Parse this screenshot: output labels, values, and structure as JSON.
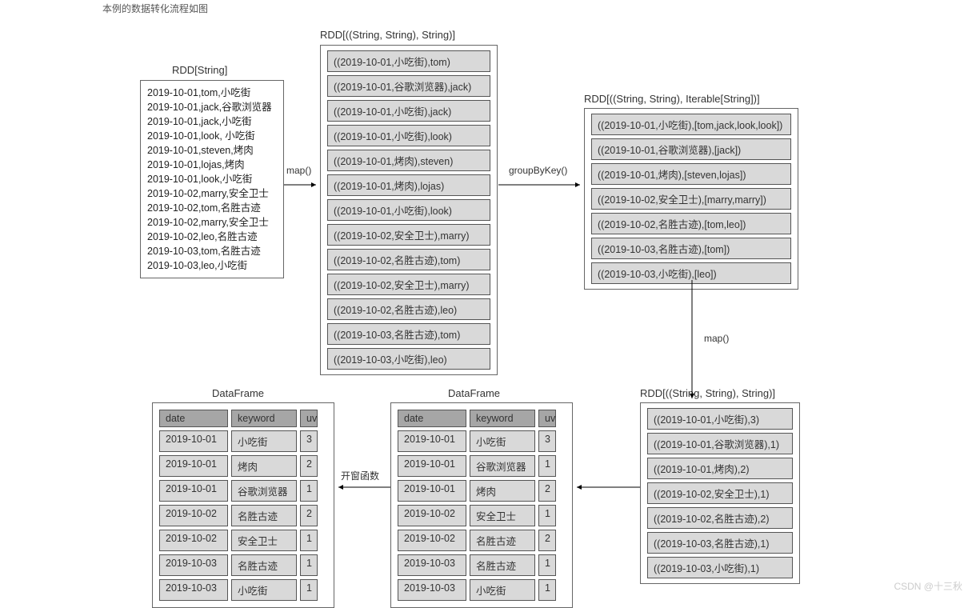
{
  "caption": "本例的数据转化流程如图",
  "watermark": "CSDN @十三秋",
  "colors": {
    "border": "#666666",
    "cell_bg": "#d9d9d9",
    "header_bg": "#a6a6a6",
    "text": "#333333",
    "line": "#000000"
  },
  "box1": {
    "title": "RDD[String]",
    "lines": [
      "2019-10-01,tom,小吃街",
      "2019-10-01,jack,谷歌浏览器",
      "2019-10-01,jack,小吃街",
      "2019-10-01,look, 小吃街",
      "2019-10-01,steven,烤肉",
      "2019-10-01,lojas,烤肉",
      "2019-10-01,look,小吃街",
      "2019-10-02,marry,安全卫士",
      "2019-10-02,tom,名胜古迹",
      "2019-10-02,marry,安全卫士",
      "2019-10-02,leo,名胜古迹",
      "2019-10-03,tom,名胜古迹",
      "2019-10-03,leo,小吃街"
    ]
  },
  "arrow1": {
    "label": "map()"
  },
  "box2": {
    "title": "RDD[((String, String), String)]",
    "cells": [
      "((2019-10-01,小吃街),tom)",
      "((2019-10-01,谷歌浏览器),jack)",
      "((2019-10-01,小吃街),jack)",
      "((2019-10-01,小吃街),look)",
      "((2019-10-01,烤肉),steven)",
      "((2019-10-01,烤肉),lojas)",
      "((2019-10-01,小吃街),look)",
      "((2019-10-02,安全卫士),marry)",
      "((2019-10-02,名胜古迹),tom)",
      "((2019-10-02,安全卫士),marry)",
      "((2019-10-02,名胜古迹),leo)",
      "((2019-10-03,名胜古迹),tom)",
      "((2019-10-03,小吃街),leo)"
    ]
  },
  "arrow2": {
    "label": "groupByKey()"
  },
  "box3": {
    "title": "RDD[((String, String), Iterable[String])]",
    "cells": [
      "((2019-10-01,小吃街),[tom,jack,look,look])",
      "((2019-10-01,谷歌浏览器),[jack])",
      "((2019-10-01,烤肉),[steven,lojas])",
      "((2019-10-02,安全卫士),[marry,marry])",
      "((2019-10-02,名胜古迹),[tom,leo])",
      "((2019-10-03,名胜古迹),[tom])",
      "((2019-10-03,小吃街),[leo])"
    ]
  },
  "arrow3": {
    "label": "map()"
  },
  "box4": {
    "title": "RDD[((String, String), String)]",
    "cells": [
      "((2019-10-01,小吃街),3)",
      "((2019-10-01,谷歌浏览器),1)",
      "((2019-10-01,烤肉),2)",
      "((2019-10-02,安全卫士),1)",
      "((2019-10-02,名胜古迹),2)",
      "((2019-10-03,名胜古迹),1)",
      "((2019-10-03,小吃街),1)"
    ]
  },
  "box5": {
    "title": "DataFrame",
    "headers": {
      "c1": "date",
      "c2": "keyword",
      "c3": "uv"
    },
    "rows": [
      {
        "c1": "2019-10-01",
        "c2": "小吃街",
        "c3": "3"
      },
      {
        "c1": "2019-10-01",
        "c2": "谷歌浏览器",
        "c3": "1"
      },
      {
        "c1": "2019-10-01",
        "c2": "烤肉",
        "c3": "2"
      },
      {
        "c1": "2019-10-02",
        "c2": "安全卫士",
        "c3": "1"
      },
      {
        "c1": "2019-10-02",
        "c2": "名胜古迹",
        "c3": "2"
      },
      {
        "c1": "2019-10-03",
        "c2": "名胜古迹",
        "c3": "1"
      },
      {
        "c1": "2019-10-03",
        "c2": "小吃街",
        "c3": "1"
      }
    ]
  },
  "arrow5": {
    "label": "开窗函数"
  },
  "box6": {
    "title": "DataFrame",
    "headers": {
      "c1": "date",
      "c2": "keyword",
      "c3": "uv"
    },
    "rows": [
      {
        "c1": "2019-10-01",
        "c2": "小吃街",
        "c3": "3"
      },
      {
        "c1": "2019-10-01",
        "c2": "烤肉",
        "c3": "2"
      },
      {
        "c1": "2019-10-01",
        "c2": "谷歌浏览器",
        "c3": "1"
      },
      {
        "c1": "2019-10-02",
        "c2": "名胜古迹",
        "c3": "2"
      },
      {
        "c1": "2019-10-02",
        "c2": "安全卫士",
        "c3": "1"
      },
      {
        "c1": "2019-10-03",
        "c2": "名胜古迹",
        "c3": "1"
      },
      {
        "c1": "2019-10-03",
        "c2": "小吃街",
        "c3": "1"
      }
    ]
  }
}
